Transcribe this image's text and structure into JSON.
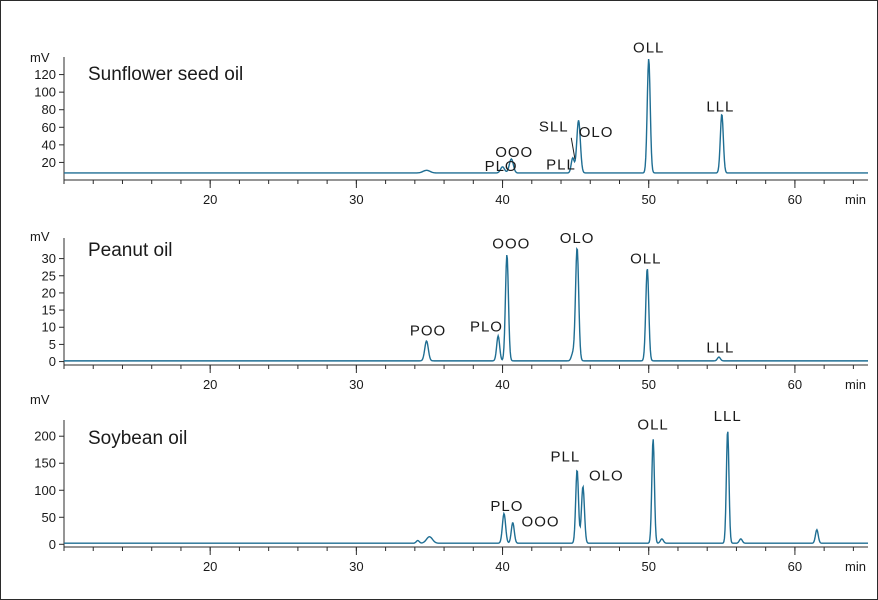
{
  "chart_data": [
    {
      "type": "line",
      "title": "Sunflower seed oil",
      "ylabel": "mV",
      "xlabel": "min",
      "xlim": [
        10,
        65
      ],
      "ylim": [
        0,
        140
      ],
      "y_ticks": [
        20,
        40,
        60,
        80,
        100,
        120
      ],
      "x_ticks": [
        20,
        30,
        40,
        50,
        60
      ],
      "baseline": 8,
      "peaks": [
        {
          "rt": 34.8,
          "height": 3,
          "width": 0.35
        },
        {
          "rt": 40.0,
          "height": 7,
          "width": 0.2
        },
        {
          "rt": 40.6,
          "height": 16,
          "width": 0.2
        },
        {
          "rt": 44.8,
          "height": 17,
          "width": 0.15
        },
        {
          "rt": 45.2,
          "height": 60,
          "width": 0.18
        },
        {
          "rt": 50.0,
          "height": 130,
          "width": 0.15
        },
        {
          "rt": 55.0,
          "height": 67,
          "width": 0.15
        }
      ],
      "annotations": [
        {
          "text": "PLO",
          "rt": 39.9,
          "y": 10
        },
        {
          "text": "OOO",
          "rt": 40.8,
          "y": 26
        },
        {
          "text": "PLL",
          "rt": 44.0,
          "y": 12
        },
        {
          "text": "SLL",
          "rt": 43.5,
          "y": 55
        },
        {
          "text": "OLO",
          "rt": 46.4,
          "y": 49
        },
        {
          "text": "OLL",
          "rt": 50.0,
          "y": 145
        },
        {
          "text": "LLL",
          "rt": 54.9,
          "y": 78
        }
      ],
      "leader_line": {
        "from_rt": 44.7,
        "from_y": 48,
        "to_rt": 44.95,
        "to_y": 24
      }
    },
    {
      "type": "line",
      "title": "Peanut oil",
      "ylabel": "mV",
      "xlabel": "min",
      "xlim": [
        10,
        65
      ],
      "ylim": [
        -1,
        36
      ],
      "y_ticks": [
        0,
        5,
        10,
        15,
        20,
        25,
        30
      ],
      "x_ticks": [
        20,
        30,
        40,
        50,
        60
      ],
      "baseline": 0.2,
      "peaks": [
        {
          "rt": 34.8,
          "height": 5.8,
          "width": 0.18
        },
        {
          "rt": 39.7,
          "height": 7.3,
          "width": 0.15
        },
        {
          "rt": 40.3,
          "height": 31,
          "width": 0.15
        },
        {
          "rt": 44.8,
          "height": 2,
          "width": 0.15
        },
        {
          "rt": 45.1,
          "height": 33,
          "width": 0.16
        },
        {
          "rt": 49.9,
          "height": 27,
          "width": 0.15
        },
        {
          "rt": 54.8,
          "height": 1.1,
          "width": 0.15
        }
      ],
      "annotations": [
        {
          "text": "POO",
          "rt": 34.9,
          "y": 7.6
        },
        {
          "text": "PLO",
          "rt": 38.9,
          "y": 8.8
        },
        {
          "text": "OOO",
          "rt": 40.6,
          "y": 33
        },
        {
          "text": "OLO",
          "rt": 45.1,
          "y": 34.6
        },
        {
          "text": "OLL",
          "rt": 49.8,
          "y": 28.5
        },
        {
          "text": "LLL",
          "rt": 54.9,
          "y": 2.6
        }
      ]
    },
    {
      "type": "line",
      "title": "Soybean oil",
      "ylabel": "mV",
      "xlabel": "min",
      "xlim": [
        10,
        65
      ],
      "ylim": [
        -5,
        230
      ],
      "y_ticks": [
        0,
        50,
        100,
        150,
        200
      ],
      "x_ticks": [
        20,
        30,
        40,
        50,
        60
      ],
      "baseline": 2,
      "peaks": [
        {
          "rt": 34.2,
          "height": 5,
          "width": 0.15
        },
        {
          "rt": 35.0,
          "height": 12,
          "width": 0.3
        },
        {
          "rt": 40.1,
          "height": 55,
          "width": 0.16
        },
        {
          "rt": 40.7,
          "height": 38,
          "width": 0.15
        },
        {
          "rt": 45.1,
          "height": 136,
          "width": 0.14
        },
        {
          "rt": 45.5,
          "height": 105,
          "width": 0.15
        },
        {
          "rt": 50.3,
          "height": 193,
          "width": 0.13
        },
        {
          "rt": 50.9,
          "height": 8,
          "width": 0.15
        },
        {
          "rt": 55.4,
          "height": 209,
          "width": 0.13
        },
        {
          "rt": 56.3,
          "height": 8,
          "width": 0.15
        },
        {
          "rt": 61.5,
          "height": 25,
          "width": 0.14
        }
      ],
      "annotations": [
        {
          "text": "PLO",
          "rt": 40.3,
          "y": 62
        },
        {
          "text": "OOO",
          "rt": 42.6,
          "y": 33
        },
        {
          "text": "PLL",
          "rt": 44.3,
          "y": 153
        },
        {
          "text": "OLO",
          "rt": 47.1,
          "y": 118
        },
        {
          "text": "OLL",
          "rt": 50.3,
          "y": 212
        },
        {
          "text": "LLL",
          "rt": 55.4,
          "y": 228
        }
      ]
    }
  ]
}
